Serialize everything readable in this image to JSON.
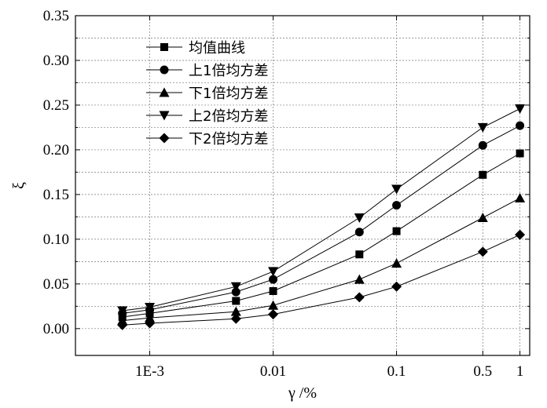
{
  "chart_data": {
    "type": "line",
    "xlabel": "γ /%",
    "ylabel": "ξ",
    "x_scale": "log",
    "xlim": [
      0.00025,
      1.2
    ],
    "ylim": [
      -0.03,
      0.35
    ],
    "x_ticks": [
      0.001,
      0.01,
      0.1,
      0.5,
      1
    ],
    "x_tick_labels": [
      "1E-3",
      "0.01",
      "0.1",
      "0.5",
      "1"
    ],
    "y_ticks": [
      0.0,
      0.05,
      0.1,
      0.15,
      0.2,
      0.25,
      0.3,
      0.35
    ],
    "y_tick_labels": [
      "0.00",
      "0.05",
      "0.10",
      "0.15",
      "0.20",
      "0.25",
      "0.30",
      "0.35"
    ],
    "grid": "dashed, both axes",
    "legend_position": "top-left",
    "x": [
      0.0006,
      0.001,
      0.005,
      0.01,
      0.05,
      0.1,
      0.5,
      1
    ],
    "series": [
      {
        "name": "均值曲线",
        "marker": "square",
        "values": [
          0.013,
          0.017,
          0.031,
          0.042,
          0.083,
          0.109,
          0.172,
          0.196
        ]
      },
      {
        "name": "上1倍均方差",
        "marker": "circle",
        "values": [
          0.017,
          0.021,
          0.041,
          0.055,
          0.108,
          0.138,
          0.205,
          0.227
        ]
      },
      {
        "name": "下1倍均方差",
        "marker": "triangle-up",
        "values": [
          0.009,
          0.012,
          0.019,
          0.026,
          0.055,
          0.073,
          0.124,
          0.146
        ]
      },
      {
        "name": "上2倍均方差",
        "marker": "triangle-down",
        "values": [
          0.02,
          0.024,
          0.047,
          0.064,
          0.124,
          0.156,
          0.225,
          0.246
        ]
      },
      {
        "name": "下2倍均方差",
        "marker": "diamond",
        "values": [
          0.004,
          0.006,
          0.011,
          0.016,
          0.035,
          0.047,
          0.086,
          0.105
        ]
      }
    ]
  }
}
